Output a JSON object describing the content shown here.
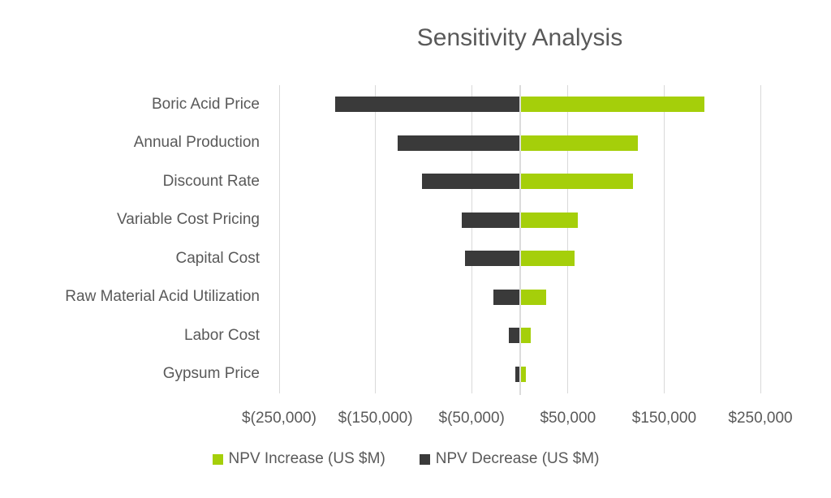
{
  "title": "Sensitivity Analysis",
  "chart_data": {
    "type": "bar",
    "orientation": "horizontal-tornado",
    "title": "Sensitivity Analysis",
    "categories": [
      "Boric Acid Price",
      "Annual Production",
      "Discount Rate",
      "Variable Cost Pricing",
      "Capital Cost",
      "Raw Material Acid Utilization",
      "Labor Cost",
      "Gypsum Price"
    ],
    "series": [
      {
        "name": "NPV Increase (US $M)",
        "color": "#a5cf0a",
        "values": [
          192000,
          123000,
          118000,
          60000,
          57000,
          27000,
          11000,
          6000
        ]
      },
      {
        "name": "NPV Decrease (US $M)",
        "color": "#3a3a3a",
        "values": [
          -192000,
          -127000,
          -102000,
          -60000,
          -57000,
          -27000,
          -11000,
          -5000
        ]
      }
    ],
    "x_axis": {
      "min": -250000,
      "max": 250000,
      "tick_step": 100000,
      "tick_values": [
        -250000,
        -150000,
        -50000,
        50000,
        150000,
        250000
      ],
      "tick_labels": [
        "$(250,000)",
        "$(150,000)",
        "$(50,000)",
        "$50,000",
        "$150,000",
        "$250,000"
      ],
      "zero_line": true
    },
    "grid": true,
    "legend_position": "bottom",
    "colors": {
      "increase": "#a5cf0a",
      "decrease": "#3a3a3a",
      "text": "#595959",
      "gridline": "#d9d9d9",
      "background": "#ffffff"
    }
  },
  "legend": {
    "items": [
      {
        "label": "NPV Increase (US $M)",
        "color": "#a5cf0a"
      },
      {
        "label": "NPV Decrease (US $M)",
        "color": "#3a3a3a"
      }
    ]
  }
}
